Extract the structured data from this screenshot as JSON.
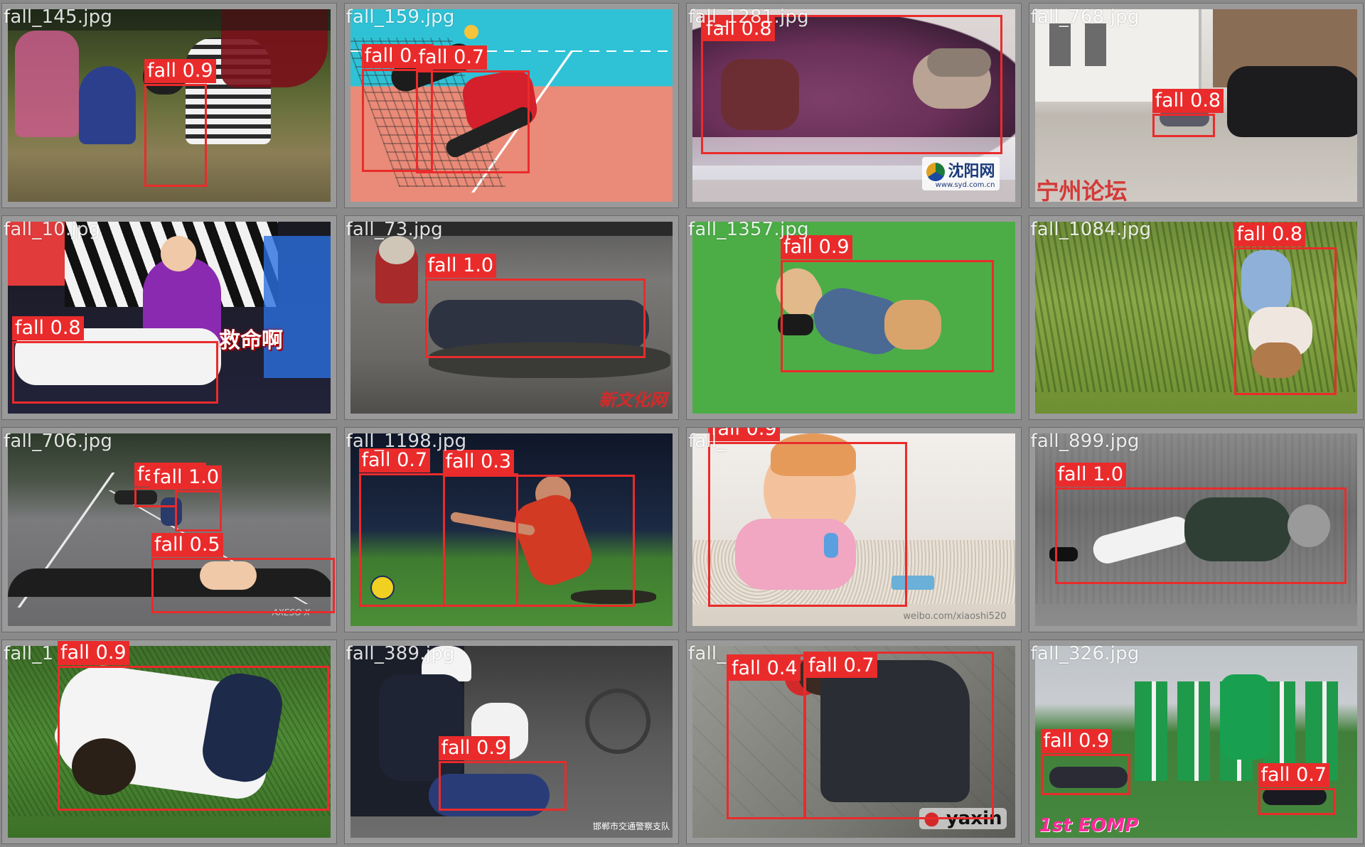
{
  "accent": "#ea2b2b",
  "tiles": [
    {
      "filename": "fall_145.jpg",
      "detections": [
        {
          "label": "fall 0.9"
        }
      ]
    },
    {
      "filename": "fall_159.jpg",
      "detections": [
        {
          "label": "fall 0.4"
        },
        {
          "label": "fall 0.7"
        }
      ]
    },
    {
      "filename": "fall_1281.jpg",
      "detections": [
        {
          "label": "fall 0.8"
        }
      ]
    },
    {
      "filename": "fall_768.jpg",
      "detections": [
        {
          "label": "fall 0.8"
        }
      ]
    },
    {
      "filename": "fall_10.jpg",
      "detections": [
        {
          "label": "fall 0.8"
        }
      ]
    },
    {
      "filename": "fall_73.jpg",
      "detections": [
        {
          "label": "fall 1.0"
        }
      ]
    },
    {
      "filename": "fall_1357.jpg",
      "detections": [
        {
          "label": "fall 0.9"
        }
      ]
    },
    {
      "filename": "fall_1084.jpg",
      "detections": [
        {
          "label": "fall 0.8"
        }
      ]
    },
    {
      "filename": "fall_706.jpg",
      "detections": [
        {
          "label": "fall 0.4"
        },
        {
          "label": "fall 1.0"
        },
        {
          "label": "fall 0.5"
        }
      ]
    },
    {
      "filename": "fall_1198.jpg",
      "detections": [
        {
          "label": "fall 0.7"
        },
        {
          "label": "fall 0.3"
        }
      ]
    },
    {
      "filename": "fall_",
      "detections": [
        {
          "label": "fall 0.9"
        }
      ]
    },
    {
      "filename": "fall_899.jpg",
      "detections": [
        {
          "label": "fall 1.0"
        }
      ]
    },
    {
      "filename": "fall_1",
      "detections": [
        {
          "label": "fall 0.9"
        }
      ]
    },
    {
      "filename": "fall_389.jpg",
      "detections": [
        {
          "label": "fall 0.9"
        }
      ]
    },
    {
      "filename": "fall_",
      "detections": [
        {
          "label": "fall 0.4"
        },
        {
          "label": "fall 0.7"
        }
      ]
    },
    {
      "filename": "fall_326.jpg",
      "detections": [
        {
          "label": "fall 0.9"
        },
        {
          "label": "fall 0.7"
        }
      ]
    }
  ],
  "watermarks": {
    "t3_logo": "沈阳网",
    "t3_url": "www.syd.com.cn",
    "t4_logo": "宁州论坛",
    "t5_text": "救命啊",
    "t6_logo": "新文化网",
    "t9_text": "AXESO X",
    "t11_text": "weibo.com/xiaoshi520",
    "t14_text": "邯郸市交通警察支队",
    "t15_logo": "yaxin",
    "t16_logo": "1st ЕОМР"
  }
}
